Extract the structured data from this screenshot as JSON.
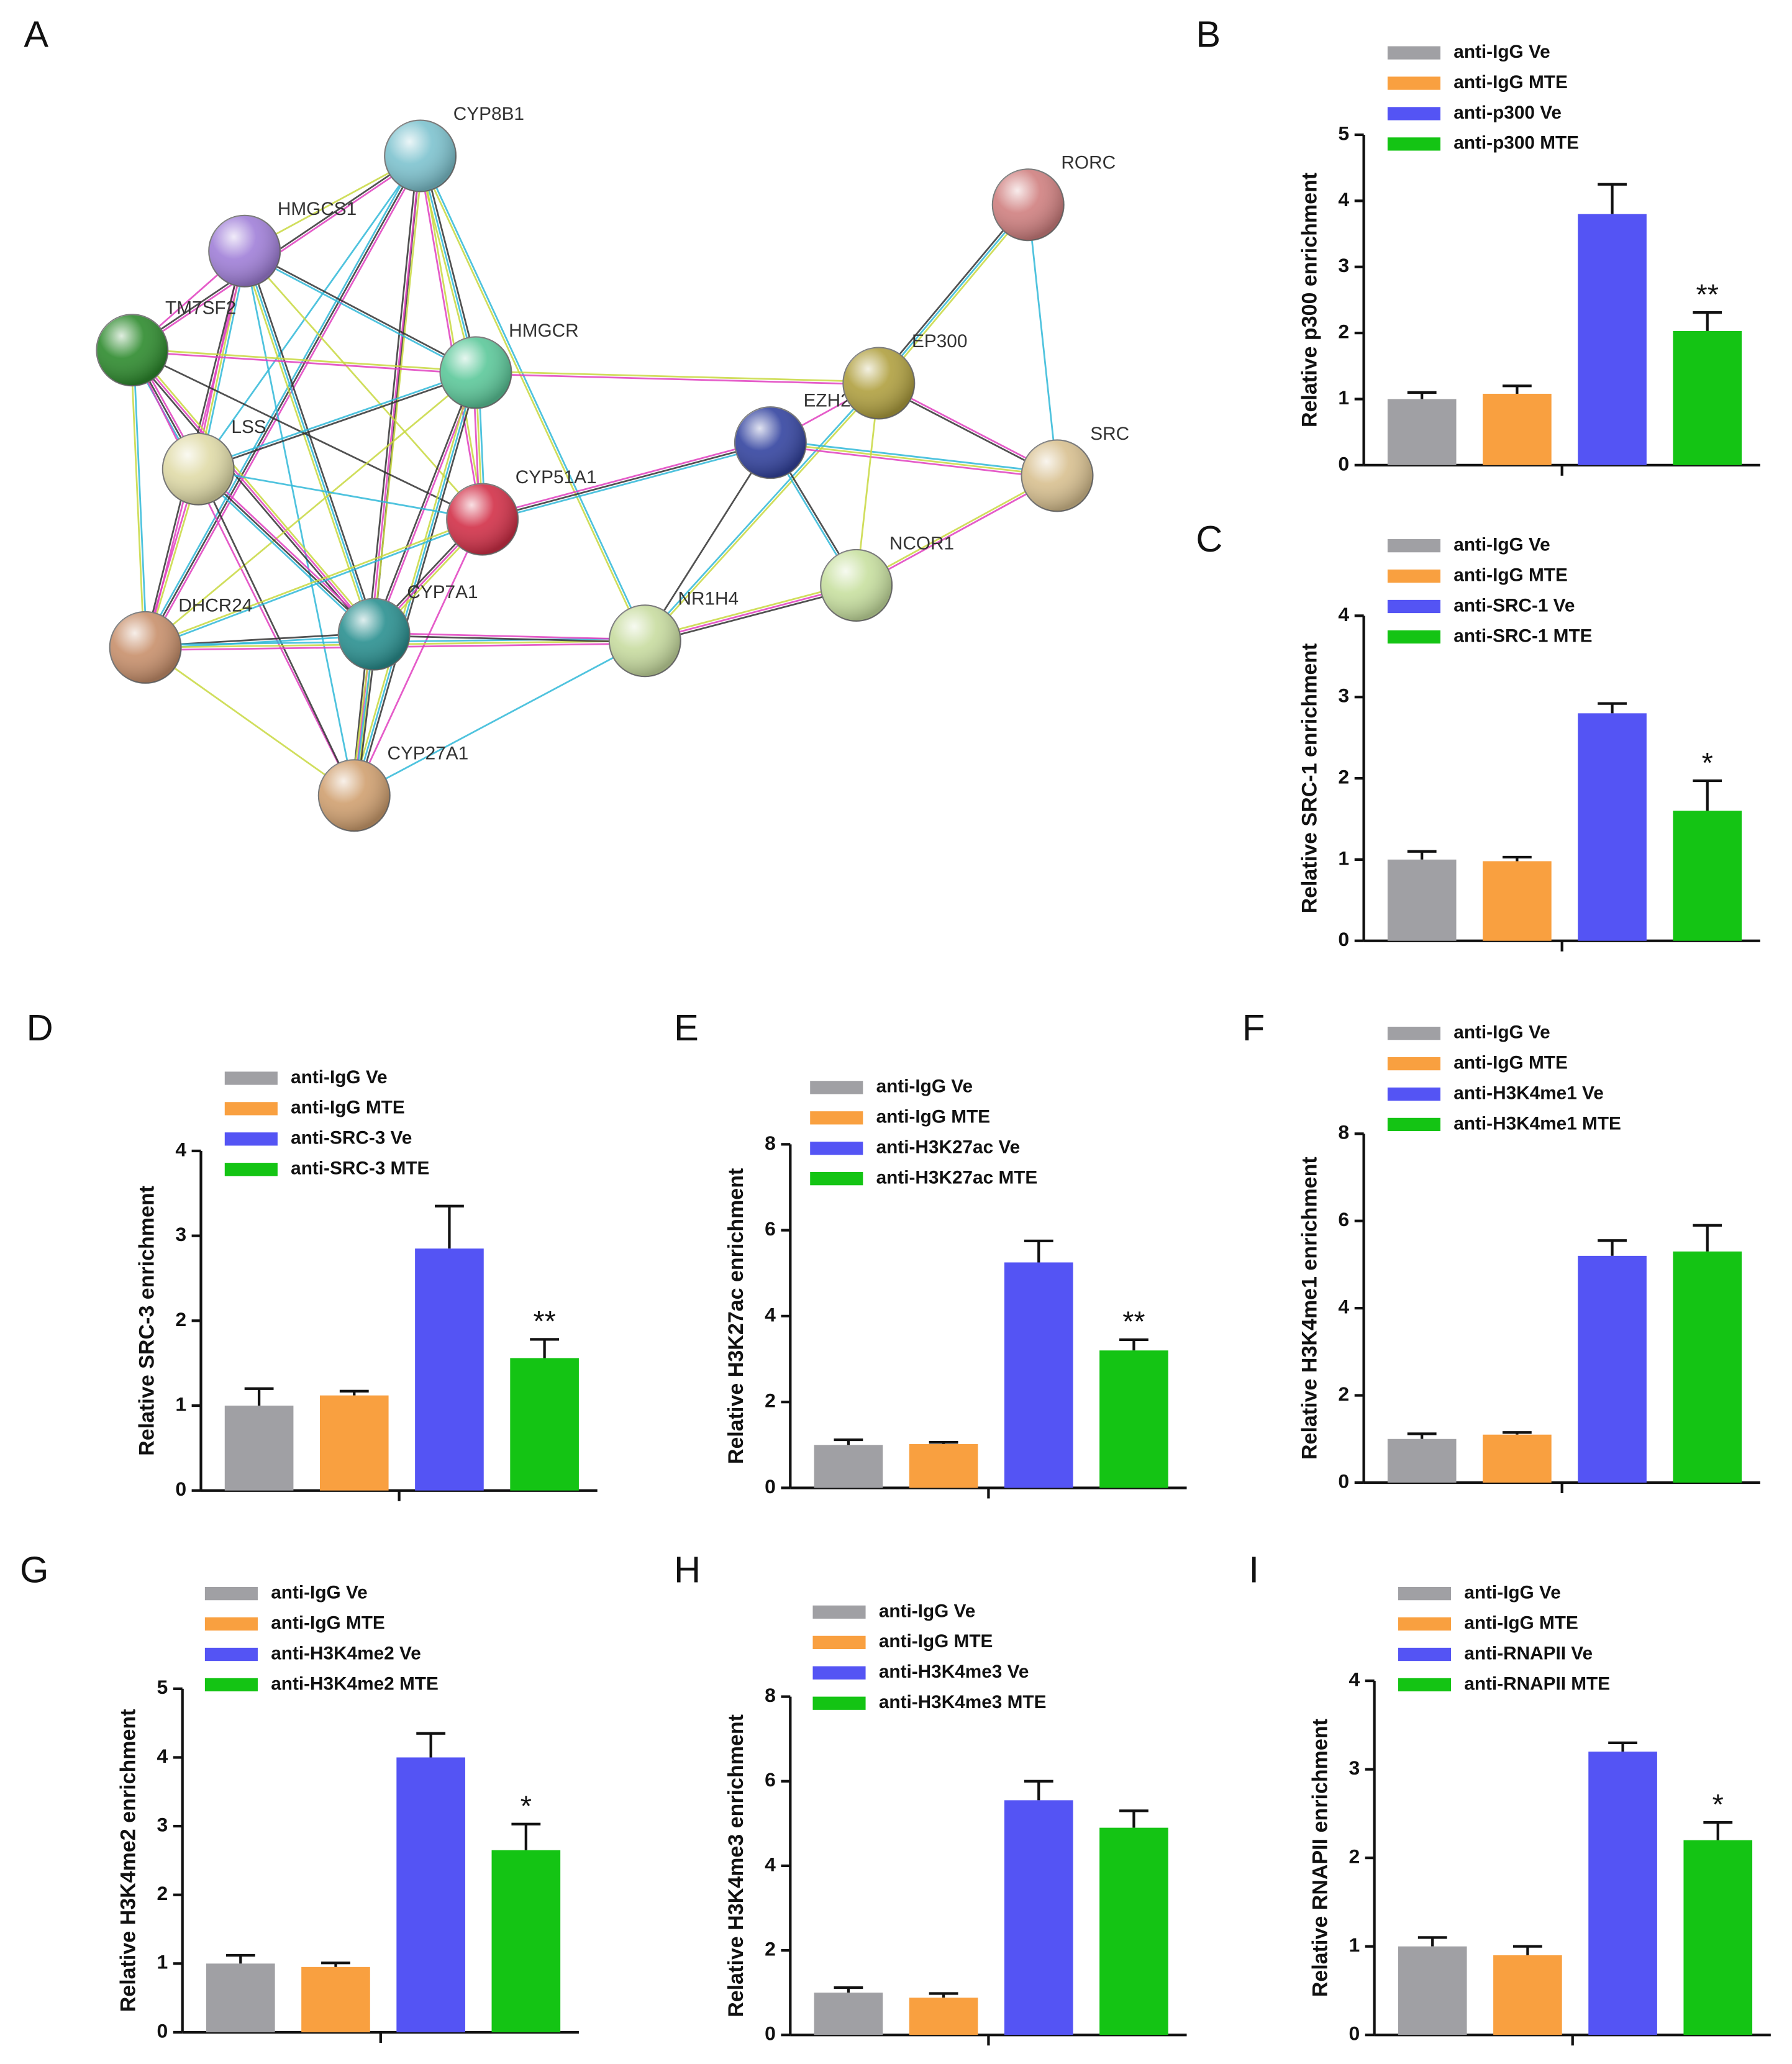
{
  "network": {
    "panel_label": "A",
    "nodes": [
      "CYP8B1",
      "HMGCS1",
      "TM7SF2",
      "HMGCR",
      "LSS",
      "CYP51A1",
      "DHCR24",
      "CYP7A1",
      "NR1H4",
      "CYP27A1",
      "EZH2",
      "EP300",
      "NCOR1",
      "SRC",
      "RORC"
    ]
  },
  "chart_data": [
    {
      "type": "bar",
      "panel_label": "B",
      "y_label": "Relative p300 enrichment",
      "ylim": [
        0,
        5
      ],
      "yticks": [
        0,
        1,
        2,
        3,
        4,
        5
      ],
      "series": [
        {
          "name": "anti-IgG Ve",
          "color": "#a0a0a4",
          "values": [
            1.0
          ],
          "errors": [
            0.1
          ]
        },
        {
          "name": "anti-IgG MTE",
          "color": "#f9a040",
          "values": [
            1.08
          ],
          "errors": [
            0.12
          ]
        },
        {
          "name": "anti-p300 Ve",
          "color": "#5454f4",
          "values": [
            3.8
          ],
          "errors": [
            0.45
          ]
        },
        {
          "name": "anti-p300 MTE",
          "color": "#14c414",
          "values": [
            2.03
          ],
          "errors": [
            0.28
          ],
          "annotation": "**"
        }
      ]
    },
    {
      "type": "bar",
      "panel_label": "C",
      "y_label": "Relative SRC-1 enrichment",
      "ylim": [
        0,
        4
      ],
      "yticks": [
        0,
        1,
        2,
        3,
        4
      ],
      "series": [
        {
          "name": "anti-IgG Ve",
          "color": "#a0a0a4",
          "values": [
            1.0
          ],
          "errors": [
            0.1
          ]
        },
        {
          "name": "anti-IgG MTE",
          "color": "#f9a040",
          "values": [
            0.98
          ],
          "errors": [
            0.05
          ]
        },
        {
          "name": "anti-SRC-1 Ve",
          "color": "#5454f4",
          "values": [
            2.8
          ],
          "errors": [
            0.12
          ]
        },
        {
          "name": "anti-SRC-1 MTE",
          "color": "#14c414",
          "values": [
            1.6
          ],
          "errors": [
            0.37
          ],
          "annotation": "*"
        }
      ]
    },
    {
      "type": "bar",
      "panel_label": "D",
      "y_label": "Relative SRC-3 enrichment",
      "ylim": [
        0,
        4
      ],
      "yticks": [
        0,
        1,
        2,
        3,
        4
      ],
      "series": [
        {
          "name": "anti-IgG Ve",
          "color": "#a0a0a4",
          "values": [
            1.0
          ],
          "errors": [
            0.2
          ]
        },
        {
          "name": "anti-IgG MTE",
          "color": "#f9a040",
          "values": [
            1.12
          ],
          "errors": [
            0.05
          ]
        },
        {
          "name": "anti-SRC-3 Ve",
          "color": "#5454f4",
          "values": [
            2.85
          ],
          "errors": [
            0.5
          ]
        },
        {
          "name": "anti-SRC-3 MTE",
          "color": "#14c414",
          "values": [
            1.56
          ],
          "errors": [
            0.22
          ],
          "annotation": "**"
        }
      ]
    },
    {
      "type": "bar",
      "panel_label": "E",
      "y_label": "Relative H3K27ac enrichment",
      "ylim": [
        0,
        8
      ],
      "yticks": [
        0,
        2,
        4,
        6,
        8
      ],
      "series": [
        {
          "name": "anti-IgG Ve",
          "color": "#a0a0a4",
          "values": [
            1.0
          ],
          "errors": [
            0.12
          ]
        },
        {
          "name": "anti-IgG MTE",
          "color": "#f9a040",
          "values": [
            1.02
          ],
          "errors": [
            0.04
          ]
        },
        {
          "name": "anti-H3K27ac Ve",
          "color": "#5454f4",
          "values": [
            5.25
          ],
          "errors": [
            0.5
          ]
        },
        {
          "name": "anti-H3K27ac MTE",
          "color": "#14c414",
          "values": [
            3.2
          ],
          "errors": [
            0.25
          ],
          "annotation": "**"
        }
      ]
    },
    {
      "type": "bar",
      "panel_label": "F",
      "y_label": "Relative H3K4me1 enrichment",
      "ylim": [
        0,
        8
      ],
      "yticks": [
        0,
        2,
        4,
        6,
        8
      ],
      "series": [
        {
          "name": "anti-IgG Ve",
          "color": "#a0a0a4",
          "values": [
            1.0
          ],
          "errors": [
            0.12
          ]
        },
        {
          "name": "anti-IgG MTE",
          "color": "#f9a040",
          "values": [
            1.1
          ],
          "errors": [
            0.05
          ]
        },
        {
          "name": "anti-H3K4me1 Ve",
          "color": "#5454f4",
          "values": [
            5.2
          ],
          "errors": [
            0.35
          ]
        },
        {
          "name": "anti-H3K4me1 MTE",
          "color": "#14c414",
          "values": [
            5.3
          ],
          "errors": [
            0.6
          ]
        }
      ]
    },
    {
      "type": "bar",
      "panel_label": "G",
      "y_label": "Relative H3K4me2 enrichment",
      "ylim": [
        0,
        5
      ],
      "yticks": [
        0,
        1,
        2,
        3,
        4,
        5
      ],
      "series": [
        {
          "name": "anti-IgG Ve",
          "color": "#a0a0a4",
          "values": [
            1.0
          ],
          "errors": [
            0.12
          ]
        },
        {
          "name": "anti-IgG MTE",
          "color": "#f9a040",
          "values": [
            0.95
          ],
          "errors": [
            0.06
          ]
        },
        {
          "name": "anti-H3K4me2 Ve",
          "color": "#5454f4",
          "values": [
            4.0
          ],
          "errors": [
            0.35
          ]
        },
        {
          "name": "anti-H3K4me2 MTE",
          "color": "#14c414",
          "values": [
            2.65
          ],
          "errors": [
            0.38
          ],
          "annotation": "*"
        }
      ]
    },
    {
      "type": "bar",
      "panel_label": "H",
      "y_label": "Relative H3K4me3 enrichment",
      "ylim": [
        0,
        8
      ],
      "yticks": [
        0,
        2,
        4,
        6,
        8
      ],
      "series": [
        {
          "name": "anti-IgG Ve",
          "color": "#a0a0a4",
          "values": [
            1.0
          ],
          "errors": [
            0.12
          ]
        },
        {
          "name": "anti-IgG MTE",
          "color": "#f9a040",
          "values": [
            0.88
          ],
          "errors": [
            0.1
          ]
        },
        {
          "name": "anti-H3K4me3 Ve",
          "color": "#5454f4",
          "values": [
            5.55
          ],
          "errors": [
            0.45
          ]
        },
        {
          "name": "anti-H3K4me3 MTE",
          "color": "#14c414",
          "values": [
            4.9
          ],
          "errors": [
            0.4
          ]
        }
      ]
    },
    {
      "type": "bar",
      "panel_label": "I",
      "y_label": "Relative RNAPII enrichment",
      "ylim": [
        0,
        4
      ],
      "yticks": [
        0,
        1,
        2,
        3,
        4
      ],
      "series": [
        {
          "name": "anti-IgG Ve",
          "color": "#a0a0a4",
          "values": [
            1.0
          ],
          "errors": [
            0.1
          ]
        },
        {
          "name": "anti-IgG MTE",
          "color": "#f9a040",
          "values": [
            0.9
          ],
          "errors": [
            0.1
          ]
        },
        {
          "name": "anti-RNAPII Ve",
          "color": "#5454f4",
          "values": [
            3.2
          ],
          "errors": [
            0.1
          ]
        },
        {
          "name": "anti-RNAPII MTE",
          "color": "#14c414",
          "values": [
            2.2
          ],
          "errors": [
            0.2
          ],
          "annotation": "*"
        }
      ]
    }
  ]
}
